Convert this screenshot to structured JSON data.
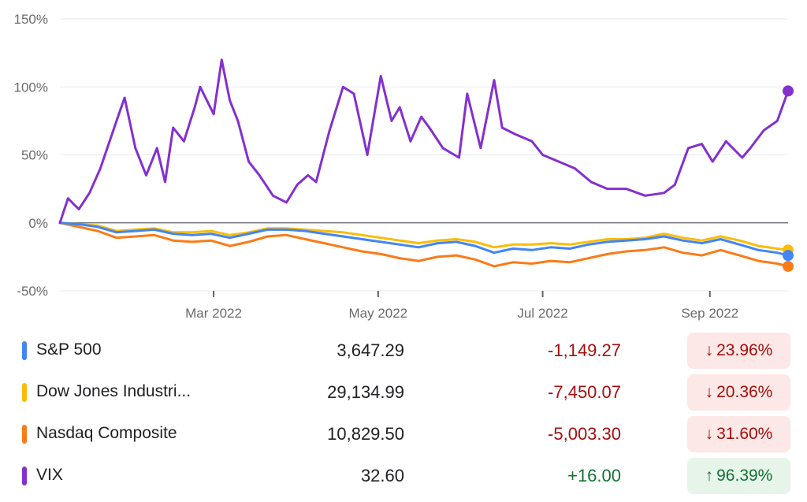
{
  "chart_data": {
    "type": "line",
    "y_unit": "%",
    "ylim": [
      -50,
      150
    ],
    "yticks": [
      "150%",
      "100%",
      "50%",
      "0%",
      "-50%"
    ],
    "ytick_values": [
      150,
      100,
      50,
      0,
      -50
    ],
    "xlim": [
      "2022-01-03",
      "2022-09-30"
    ],
    "xticks": [
      "Mar 2022",
      "May 2022",
      "Jul 2022",
      "Sep 2022"
    ],
    "xtick_dates": [
      "2022-03-01",
      "2022-05-01",
      "2022-07-01",
      "2022-09-01"
    ],
    "grid": true,
    "series": [
      {
        "name": "S&P 500",
        "color": "#4285f4",
        "x": [
          "2022-01-03",
          "2022-01-10",
          "2022-01-17",
          "2022-01-24",
          "2022-01-31",
          "2022-02-07",
          "2022-02-14",
          "2022-02-21",
          "2022-02-28",
          "2022-03-07",
          "2022-03-14",
          "2022-03-21",
          "2022-03-28",
          "2022-04-04",
          "2022-04-11",
          "2022-04-18",
          "2022-04-25",
          "2022-05-02",
          "2022-05-09",
          "2022-05-16",
          "2022-05-23",
          "2022-05-30",
          "2022-06-06",
          "2022-06-13",
          "2022-06-20",
          "2022-06-27",
          "2022-07-04",
          "2022-07-11",
          "2022-07-18",
          "2022-07-25",
          "2022-08-01",
          "2022-08-08",
          "2022-08-15",
          "2022-08-22",
          "2022-08-29",
          "2022-09-05",
          "2022-09-12",
          "2022-09-19",
          "2022-09-26",
          "2022-09-30"
        ],
        "values": [
          0,
          -1,
          -3,
          -7,
          -6,
          -5,
          -8,
          -9,
          -8,
          -11,
          -8,
          -5,
          -5,
          -6,
          -8,
          -10,
          -12,
          -14,
          -16,
          -18,
          -15,
          -14,
          -17,
          -22,
          -19,
          -20,
          -18,
          -19,
          -16,
          -14,
          -13,
          -12,
          -10,
          -13,
          -15,
          -12,
          -16,
          -20,
          -22,
          -24
        ]
      },
      {
        "name": "Dow Jones Industri...",
        "color": "#fbbc04",
        "x": [
          "2022-01-03",
          "2022-01-10",
          "2022-01-17",
          "2022-01-24",
          "2022-01-31",
          "2022-02-07",
          "2022-02-14",
          "2022-02-21",
          "2022-02-28",
          "2022-03-07",
          "2022-03-14",
          "2022-03-21",
          "2022-03-28",
          "2022-04-04",
          "2022-04-11",
          "2022-04-18",
          "2022-04-25",
          "2022-05-02",
          "2022-05-09",
          "2022-05-16",
          "2022-05-23",
          "2022-05-30",
          "2022-06-06",
          "2022-06-13",
          "2022-06-20",
          "2022-06-27",
          "2022-07-04",
          "2022-07-11",
          "2022-07-18",
          "2022-07-25",
          "2022-08-01",
          "2022-08-08",
          "2022-08-15",
          "2022-08-22",
          "2022-08-29",
          "2022-09-05",
          "2022-09-12",
          "2022-09-19",
          "2022-09-26",
          "2022-09-30"
        ],
        "values": [
          0,
          -1,
          -2,
          -6,
          -5,
          -4,
          -7,
          -7,
          -6,
          -9,
          -7,
          -4,
          -4,
          -5,
          -6,
          -7,
          -9,
          -11,
          -13,
          -15,
          -13,
          -12,
          -14,
          -18,
          -16,
          -16,
          -15,
          -16,
          -14,
          -12,
          -12,
          -11,
          -8,
          -11,
          -13,
          -10,
          -13,
          -17,
          -19,
          -20
        ]
      },
      {
        "name": "Nasdaq Composite",
        "color": "#fa7b17",
        "x": [
          "2022-01-03",
          "2022-01-10",
          "2022-01-17",
          "2022-01-24",
          "2022-01-31",
          "2022-02-07",
          "2022-02-14",
          "2022-02-21",
          "2022-02-28",
          "2022-03-07",
          "2022-03-14",
          "2022-03-21",
          "2022-03-28",
          "2022-04-04",
          "2022-04-11",
          "2022-04-18",
          "2022-04-25",
          "2022-05-02",
          "2022-05-09",
          "2022-05-16",
          "2022-05-23",
          "2022-05-30",
          "2022-06-06",
          "2022-06-13",
          "2022-06-20",
          "2022-06-27",
          "2022-07-04",
          "2022-07-11",
          "2022-07-18",
          "2022-07-25",
          "2022-08-01",
          "2022-08-08",
          "2022-08-15",
          "2022-08-22",
          "2022-08-29",
          "2022-09-05",
          "2022-09-12",
          "2022-09-19",
          "2022-09-26",
          "2022-09-30"
        ],
        "values": [
          0,
          -3,
          -6,
          -11,
          -10,
          -9,
          -13,
          -14,
          -13,
          -17,
          -14,
          -10,
          -9,
          -12,
          -15,
          -18,
          -21,
          -23,
          -26,
          -28,
          -25,
          -24,
          -27,
          -32,
          -29,
          -30,
          -28,
          -29,
          -26,
          -23,
          -21,
          -20,
          -18,
          -22,
          -24,
          -20,
          -24,
          -28,
          -30,
          -32
        ]
      },
      {
        "name": "VIX",
        "color": "#8430ce",
        "x": [
          "2022-01-03",
          "2022-01-06",
          "2022-01-10",
          "2022-01-14",
          "2022-01-18",
          "2022-01-24",
          "2022-01-27",
          "2022-01-31",
          "2022-02-04",
          "2022-02-08",
          "2022-02-11",
          "2022-02-14",
          "2022-02-18",
          "2022-02-22",
          "2022-02-24",
          "2022-03-01",
          "2022-03-04",
          "2022-03-07",
          "2022-03-10",
          "2022-03-14",
          "2022-03-18",
          "2022-03-23",
          "2022-03-28",
          "2022-04-01",
          "2022-04-05",
          "2022-04-08",
          "2022-04-13",
          "2022-04-18",
          "2022-04-22",
          "2022-04-27",
          "2022-05-02",
          "2022-05-06",
          "2022-05-09",
          "2022-05-13",
          "2022-05-17",
          "2022-05-20",
          "2022-05-25",
          "2022-05-31",
          "2022-06-03",
          "2022-06-08",
          "2022-06-13",
          "2022-06-16",
          "2022-06-21",
          "2022-06-27",
          "2022-07-01",
          "2022-07-07",
          "2022-07-13",
          "2022-07-19",
          "2022-07-25",
          "2022-08-01",
          "2022-08-08",
          "2022-08-15",
          "2022-08-19",
          "2022-08-24",
          "2022-08-29",
          "2022-09-02",
          "2022-09-07",
          "2022-09-13",
          "2022-09-16",
          "2022-09-21",
          "2022-09-26",
          "2022-09-30"
        ],
        "values": [
          0,
          18,
          10,
          22,
          40,
          75,
          92,
          55,
          35,
          55,
          30,
          70,
          60,
          85,
          100,
          80,
          120,
          90,
          75,
          45,
          35,
          20,
          15,
          28,
          35,
          30,
          68,
          100,
          95,
          50,
          108,
          75,
          85,
          60,
          78,
          70,
          55,
          48,
          95,
          55,
          105,
          70,
          65,
          60,
          50,
          45,
          40,
          30,
          25,
          25,
          20,
          22,
          28,
          55,
          58,
          45,
          60,
          48,
          55,
          68,
          75,
          97
        ]
      }
    ]
  },
  "table": {
    "rows": [
      {
        "name": "S&P 500",
        "color": "#4285f4",
        "price": "3,647.29",
        "change": "-1,149.27",
        "pct": "23.96%",
        "direction": "down"
      },
      {
        "name": "Dow Jones Industri...",
        "color": "#fbbc04",
        "price": "29,134.99",
        "change": "-7,450.07",
        "pct": "20.36%",
        "direction": "down"
      },
      {
        "name": "Nasdaq Composite",
        "color": "#fa7b17",
        "price": "10,829.50",
        "change": "-5,003.30",
        "pct": "31.60%",
        "direction": "down"
      },
      {
        "name": "VIX",
        "color": "#8430ce",
        "price": "32.60",
        "change": "+16.00",
        "pct": "96.39%",
        "direction": "up"
      }
    ]
  },
  "colors": {
    "negative_text": "#a50e0e",
    "negative_bg": "#fce8e6",
    "positive_text": "#137333",
    "positive_bg": "#e6f4ea"
  }
}
